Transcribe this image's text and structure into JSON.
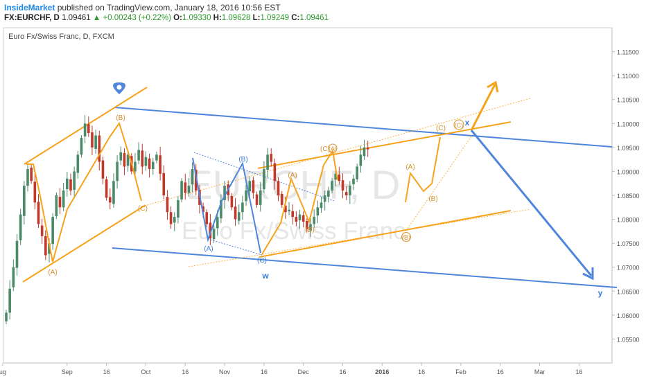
{
  "header": {
    "author": "InsideMarket",
    "published_text": "published on TradingView.com, January 18, 2016 10:56 EST",
    "symbol": "FX:EURCHF, D",
    "last": "1.09461",
    "change": "▲ +0.00243 (+0.22%)",
    "o_label": "O:",
    "o_value": "1.09330",
    "h_label": "H:",
    "h_value": "1.09628",
    "l_label": "L:",
    "l_value": "1.09249",
    "c_label": "C:",
    "c_value": "1.09461"
  },
  "chart_title": "Euro Fx/Swiss Franc, D, FXCM",
  "watermark": {
    "symbol": "EURCHF, D",
    "name": "Euro Fx/Swiss Franc"
  },
  "colors": {
    "up": "#4a8a68",
    "down": "#c0392b",
    "orange": "#f7a21b",
    "blue": "#3d7dd8",
    "axis_text": "#555555"
  },
  "chart_data": {
    "type": "candlestick",
    "title": "Euro Fx/Swiss Franc, D, FXCM",
    "y_axis": {
      "ylim": [
        1.05,
        1.12
      ],
      "ticks": [
        "1.11500",
        "1.11000",
        "1.10500",
        "1.10000",
        "1.09500",
        "1.09000",
        "1.08500",
        "1.08000",
        "1.07500",
        "1.07000",
        "1.06500",
        "1.06000",
        "1.05500"
      ]
    },
    "x_axis": {
      "ticks": [
        {
          "label": "ug",
          "day": -1
        },
        {
          "label": "Sep",
          "day": 17
        },
        {
          "label": "16",
          "day": 28
        },
        {
          "label": "Oct",
          "day": 39
        },
        {
          "label": "16",
          "day": 50
        },
        {
          "label": "Nov",
          "day": 61
        },
        {
          "label": "16",
          "day": 72
        },
        {
          "label": "Dec",
          "day": 83
        },
        {
          "label": "16",
          "day": 94
        },
        {
          "label": "2016",
          "day": 105
        },
        {
          "label": "16",
          "day": 116
        },
        {
          "label": "Feb",
          "day": 127
        },
        {
          "label": "16",
          "day": 138
        },
        {
          "label": "Mar",
          "day": 149
        },
        {
          "label": "16",
          "day": 160
        }
      ]
    },
    "closes": [
      1.0605,
      1.0655,
      1.07,
      1.0755,
      1.081,
      1.087,
      1.0905,
      1.088,
      1.0835,
      1.079,
      1.0765,
      1.0725,
      1.075,
      1.0805,
      1.085,
      1.0825,
      1.086,
      1.0885,
      1.086,
      1.09,
      1.0935,
      1.097,
      1.1,
      1.098,
      1.095,
      1.0975,
      1.092,
      1.0885,
      1.0845,
      1.0835,
      1.088,
      1.092,
      1.094,
      1.091,
      1.0935,
      1.09,
      1.092,
      1.0945,
      1.091,
      1.093,
      1.0905,
      1.092,
      1.0935,
      1.0895,
      1.085,
      1.0815,
      1.079,
      1.0805,
      1.084,
      1.088,
      1.0855,
      1.087,
      1.0905,
      1.086,
      1.083,
      1.0815,
      1.079,
      1.076,
      1.078,
      1.0805,
      1.084,
      1.087,
      1.085,
      1.0825,
      1.08,
      1.0815,
      1.0835,
      1.086,
      1.088,
      1.0855,
      1.083,
      1.086,
      1.0905,
      1.0935,
      1.092,
      1.088,
      1.085,
      1.083,
      1.0815,
      1.082,
      1.0805,
      1.0795,
      1.081,
      1.0795,
      1.078,
      1.079,
      1.0805,
      1.0825,
      1.0835,
      1.085,
      1.086,
      1.088,
      1.0895,
      1.088,
      1.086,
      1.085,
      1.087,
      1.0885,
      1.091,
      1.0935,
      1.095,
      1.0946
    ],
    "annotations": {
      "orange_labels": [
        "(B)",
        "(A)",
        "(C)",
        "(C)",
        "(A)",
        "(A)",
        "(B)",
        "(A)",
        "(B)",
        "(C)",
        "(B)",
        "(C)"
      ],
      "blue_labels": [
        "(B)",
        "(A)",
        "(C)"
      ],
      "wave_labels": [
        "w",
        "x",
        "y"
      ]
    }
  }
}
